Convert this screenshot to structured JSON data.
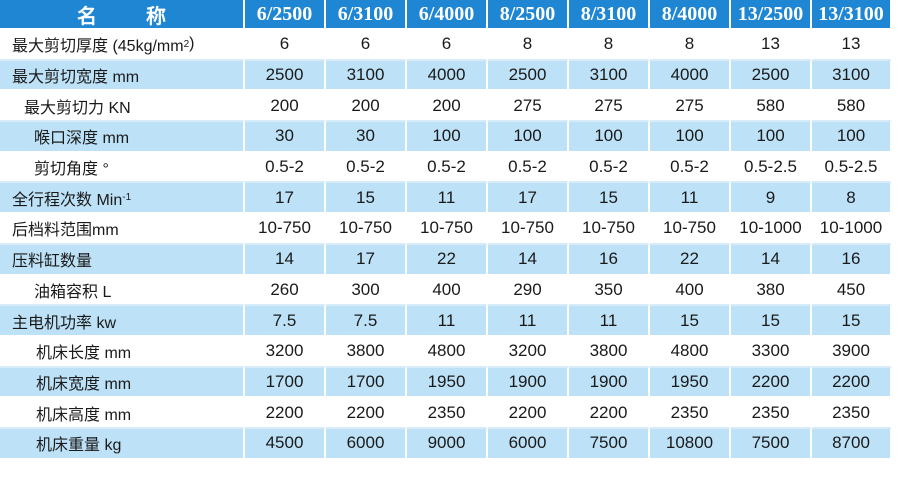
{
  "header": {
    "name": "名 称",
    "models": [
      "6/2500",
      "6/3100",
      "6/4000",
      "8/2500",
      "8/3100",
      "8/4000",
      "13/2500",
      "13/3100"
    ]
  },
  "rows": [
    {
      "label": "最大剪切厚度 (45kg/mm",
      "label_sup": "2",
      "label_after": ")",
      "values": [
        "6",
        "6",
        "6",
        "8",
        "8",
        "8",
        "13",
        "13"
      ]
    },
    {
      "label": "最大剪切宽度 mm",
      "values": [
        "2500",
        "3100",
        "4000",
        "2500",
        "3100",
        "4000",
        "2500",
        "3100"
      ]
    },
    {
      "label": "最大剪切力 KN",
      "values": [
        "200",
        "200",
        "200",
        "275",
        "275",
        "275",
        "580",
        "580"
      ]
    },
    {
      "label": "喉口深度 mm",
      "values": [
        "30",
        "30",
        "100",
        "100",
        "100",
        "100",
        "100",
        "100"
      ]
    },
    {
      "label": "剪切角度 °",
      "values": [
        "0.5-2",
        "0.5-2",
        "0.5-2",
        "0.5-2",
        "0.5-2",
        "0.5-2",
        "0.5-2.5",
        "0.5-2.5"
      ]
    },
    {
      "label": "全行程次数 Min",
      "label_sup": "-1",
      "values": [
        "17",
        "15",
        "11",
        "17",
        "15",
        "11",
        "9",
        "8"
      ]
    },
    {
      "label": "后档料范围mm",
      "values": [
        "10-750",
        "10-750",
        "10-750",
        "10-750",
        "10-750",
        "10-750",
        "10-1000",
        "10-1000"
      ]
    },
    {
      "label": "压料缸数量",
      "values": [
        "14",
        "17",
        "22",
        "14",
        "16",
        "22",
        "14",
        "16"
      ]
    },
    {
      "label": "油箱容积 L",
      "values": [
        "260",
        "300",
        "400",
        "290",
        "350",
        "400",
        "380",
        "450"
      ]
    },
    {
      "label": "主电机功率 kw",
      "values": [
        "7.5",
        "7.5",
        "11",
        "11",
        "11",
        "15",
        "15",
        "15"
      ]
    },
    {
      "label": "机床长度 mm",
      "values": [
        "3200",
        "3800",
        "4800",
        "3200",
        "3800",
        "4800",
        "3300",
        "3900"
      ]
    },
    {
      "label": "机床宽度 mm",
      "values": [
        "1700",
        "1700",
        "1950",
        "1900",
        "1900",
        "1950",
        "2200",
        "2200"
      ]
    },
    {
      "label": "机床高度 mm",
      "values": [
        "2200",
        "2200",
        "2350",
        "2200",
        "2200",
        "2350",
        "2350",
        "2350"
      ]
    },
    {
      "label": "机床重量 kg",
      "values": [
        "4500",
        "6000",
        "9000",
        "6000",
        "7500",
        "10800",
        "7500",
        "8700"
      ]
    }
  ],
  "colors": {
    "header_bg": "#1f86d4",
    "row_blue": "#bde1f7",
    "row_white": "#ffffff"
  }
}
